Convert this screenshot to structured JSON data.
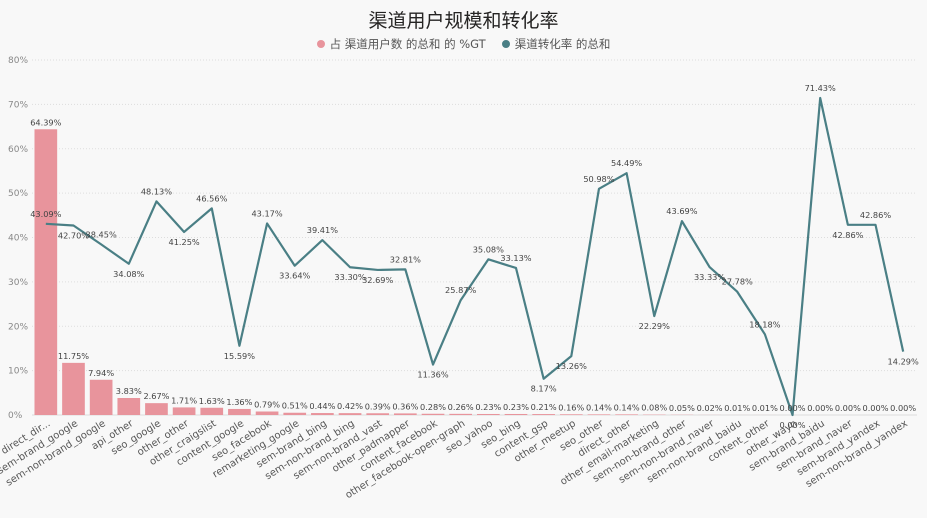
{
  "chart_data": {
    "type": "bar+line",
    "title": "渠道用户规模和转化率",
    "legend": [
      {
        "name": "占 渠道用户数 的总和 的 %GT",
        "color": "#e8949c"
      },
      {
        "name": "渠道转化率 的总和",
        "color": "#4a7f85"
      }
    ],
    "ylim": [
      0,
      80
    ],
    "yticks": [
      "0%",
      "10%",
      "20%",
      "30%",
      "40%",
      "50%",
      "60%",
      "70%",
      "80%"
    ],
    "categories": [
      "direct_dir...",
      "sem-brand_google",
      "sem-non-brand_google",
      "api_other",
      "seo_google",
      "other_other",
      "other_craigslist",
      "content_google",
      "seo_facebook",
      "remarketing_google",
      "sem-brand_bing",
      "sem-non-brand_bing",
      "sem-non-brand_vast",
      "other_padmapper",
      "content_facebook",
      "other_facebook-open-graph",
      "seo_yahoo",
      "seo_bing",
      "content_gsp",
      "other_meetup",
      "seo_other",
      "direct_other",
      "other_email-marketing",
      "sem-non-brand_other",
      "sem-non-brand_naver",
      "sem-non-brand_baidu",
      "content_other",
      "other_wayn",
      "sem-brand_baidu",
      "sem-brand_naver",
      "sem-brand_yandex",
      "sem-non-brand_yandex"
    ],
    "series": [
      {
        "name": "占 渠道用户数 的总和 的 %GT",
        "kind": "bar",
        "values": [
          64.39,
          11.75,
          7.94,
          3.83,
          2.67,
          1.71,
          1.63,
          1.36,
          0.79,
          0.51,
          0.44,
          0.42,
          0.39,
          0.36,
          0.28,
          0.26,
          0.23,
          0.23,
          0.21,
          0.16,
          0.14,
          0.14,
          0.08,
          0.05,
          0.02,
          0.01,
          0.01,
          0.0,
          0.0,
          0.0,
          0.0,
          0.0
        ],
        "labels": [
          "64.39%",
          "11.75%",
          "7.94%",
          "3.83%",
          "2.67%",
          "1.71%",
          "1.63%",
          "1.36%",
          "0.79%",
          "0.51%",
          "0.44%",
          "0.42%",
          "0.39%",
          "0.36%",
          "0.28%",
          "0.26%",
          "0.23%",
          "0.23%",
          "0.21%",
          "0.16%",
          "0.14%",
          "0.14%",
          "0.08%",
          "0.05%",
          "0.02%",
          "0.01%",
          "0.01%",
          "0.00%",
          "0.00%",
          "0.00%",
          "0.00%",
          "0.00%"
        ]
      },
      {
        "name": "渠道转化率 的总和",
        "kind": "line",
        "values": [
          43.09,
          42.7,
          38.45,
          34.08,
          48.13,
          41.25,
          46.56,
          15.59,
          43.17,
          33.64,
          39.41,
          33.3,
          32.69,
          32.81,
          11.36,
          25.87,
          35.08,
          33.13,
          8.17,
          13.26,
          50.98,
          54.49,
          22.29,
          43.69,
          33.33,
          27.78,
          18.18,
          0.0,
          71.43,
          42.86,
          42.86,
          14.29
        ],
        "labels": [
          "43.09%",
          "42.70%",
          "38.45%",
          "34.08%",
          "48.13%",
          "41.25%",
          "46.56%",
          "15.59%",
          "43.17%",
          "33.64%",
          "39.41%",
          "33.30%",
          "32.69%",
          "32.81%",
          "11.36%",
          "25.87%",
          "35.08%",
          "33.13%",
          "8.17%",
          "13.26%",
          "50.98%",
          "54.49%",
          "22.29%",
          "43.69%",
          "33.33%",
          "27.78%",
          "18.18%",
          "0.00%",
          "71.43%",
          "42.86%",
          "42.86%",
          "14.29%"
        ]
      }
    ]
  }
}
